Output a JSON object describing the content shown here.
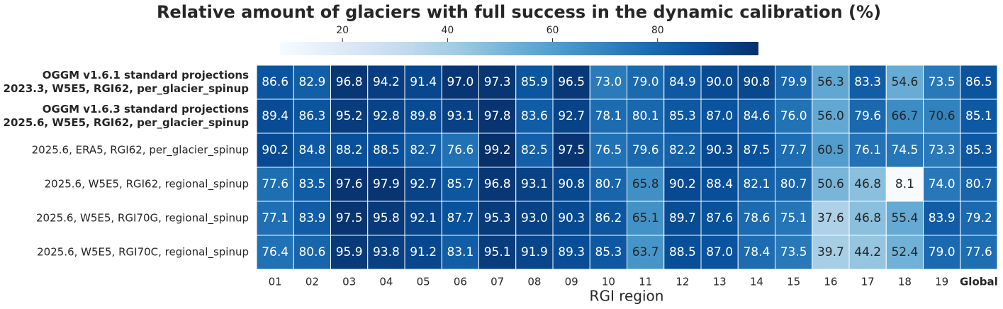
{
  "chart_data": {
    "type": "heatmap",
    "title": "Relative amount of glaciers with full success in the dynamic calibration (%)",
    "x_label": "RGI region",
    "categories": [
      "01",
      "02",
      "03",
      "04",
      "05",
      "06",
      "07",
      "08",
      "09",
      "10",
      "11",
      "12",
      "13",
      "14",
      "15",
      "16",
      "17",
      "18",
      "19",
      "Global"
    ],
    "y_labels": [
      [
        "OGGM v1.6.1 standard projections",
        "2023.3, W5E5, RGI62, per_glacier_spinup"
      ],
      [
        "OGGM v1.6.3 standard projections",
        "2025.6, W5E5, RGI62, per_glacier_spinup"
      ],
      [
        "2025.6, ERA5, RGI62, per_glacier_spinup"
      ],
      [
        "2025.6, W5E5, RGI62, regional_spinup"
      ],
      [
        "2025.6, W5E5, RGI70G, regional_spinup"
      ],
      [
        "2025.6, W5E5, RGI70C, regional_spinup"
      ]
    ],
    "bold_y_labels": [
      0,
      1
    ],
    "bold_categories": [
      19
    ],
    "values": [
      [
        86.6,
        82.9,
        96.8,
        94.2,
        91.4,
        97.0,
        97.3,
        85.9,
        96.5,
        73.0,
        79.0,
        84.9,
        90.0,
        90.8,
        79.9,
        56.3,
        83.3,
        54.6,
        73.5,
        86.5
      ],
      [
        89.4,
        86.3,
        95.2,
        92.8,
        89.8,
        93.1,
        97.8,
        83.6,
        92.7,
        78.1,
        80.1,
        85.3,
        87.0,
        84.6,
        76.0,
        56.0,
        79.6,
        66.7,
        70.6,
        85.1
      ],
      [
        90.2,
        84.8,
        88.2,
        88.5,
        82.7,
        76.6,
        99.2,
        82.5,
        97.5,
        76.5,
        79.6,
        82.2,
        90.3,
        87.5,
        77.7,
        60.5,
        76.1,
        74.5,
        73.3,
        85.3
      ],
      [
        77.6,
        83.5,
        97.6,
        97.9,
        92.7,
        85.7,
        96.8,
        93.1,
        90.8,
        80.7,
        65.8,
        90.2,
        88.4,
        82.1,
        80.7,
        50.6,
        46.8,
        8.1,
        74.0,
        80.7
      ],
      [
        77.1,
        83.9,
        97.5,
        95.8,
        92.1,
        87.7,
        95.3,
        93.0,
        90.3,
        86.2,
        65.1,
        89.7,
        87.6,
        78.6,
        75.1,
        37.6,
        46.8,
        55.4,
        83.9,
        79.2
      ],
      [
        76.4,
        80.6,
        95.9,
        93.8,
        91.2,
        83.1,
        95.1,
        91.9,
        89.3,
        85.3,
        63.7,
        88.5,
        87.0,
        78.4,
        73.5,
        39.7,
        44.2,
        52.4,
        79.0,
        77.6
      ]
    ],
    "value_labels": [
      [
        "86.6",
        "82.9",
        "96.8",
        "94.2",
        "91.4",
        "97.0",
        "97.3",
        "85.9",
        "96.5",
        "73.0",
        "79.0",
        "84.9",
        "90.0",
        "90.8",
        "79.9",
        "56.3",
        "83.3",
        "54.6",
        "73.5",
        "86.5"
      ],
      [
        "89.4",
        "86.3",
        "95.2",
        "92.8",
        "89.8",
        "93.1",
        "97.8",
        "83.6",
        "92.7",
        "78.1",
        "80.1",
        "85.3",
        "87.0",
        "84.6",
        "76.0",
        "56.0",
        "79.6",
        "66.7",
        "70.6",
        "85.1"
      ],
      [
        "90.2",
        "84.8",
        "88.2",
        "88.5",
        "82.7",
        "76.6",
        "99.2",
        "82.5",
        "97.5",
        "76.5",
        "79.6",
        "82.2",
        "90.3",
        "87.5",
        "77.7",
        "60.5",
        "76.1",
        "74.5",
        "73.3",
        "85.3"
      ],
      [
        "77.6",
        "83.5",
        "97.6",
        "97.9",
        "92.7",
        "85.7",
        "96.8",
        "93.1",
        "90.8",
        "80.7",
        "65.8",
        "90.2",
        "88.4",
        "82.1",
        "80.7",
        "50.6",
        "46.8",
        "8.1",
        "74.0",
        "80.7"
      ],
      [
        "77.1",
        "83.9",
        "97.5",
        "95.8",
        "92.1",
        "87.7",
        "95.3",
        "93.0",
        "90.3",
        "86.2",
        "65.1",
        "89.7",
        "87.6",
        "78.6",
        "75.1",
        "37.6",
        "46.8",
        "55.4",
        "83.9",
        "79.2"
      ],
      [
        "76.4",
        "80.6",
        "95.9",
        "93.8",
        "91.2",
        "83.1",
        "95.1",
        "91.9",
        "89.3",
        "85.3",
        "63.7",
        "88.5",
        "87.0",
        "78.4",
        "73.5",
        "39.7",
        "44.2",
        "52.4",
        "79.0",
        "77.6"
      ]
    ],
    "clim": [
      8.1,
      99.2
    ],
    "colorbar_ticks": [
      20,
      40,
      60,
      80
    ],
    "cmap_colors": [
      "#f7fbff",
      "#deebf7",
      "#c6dbef",
      "#9ecae1",
      "#6baed6",
      "#4292c6",
      "#2171b5",
      "#08519c",
      "#08306b"
    ]
  }
}
